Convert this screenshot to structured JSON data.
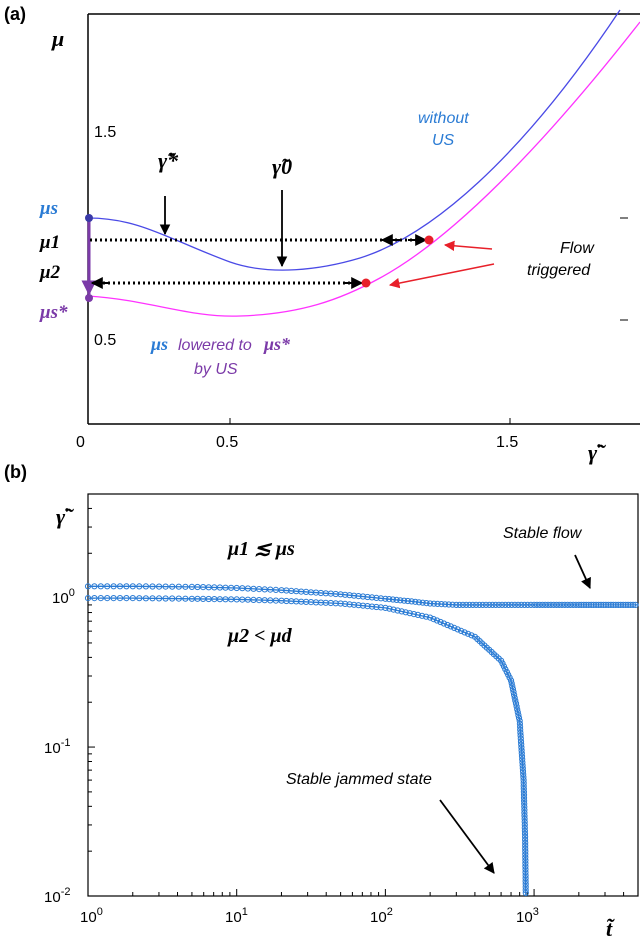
{
  "chart_data": [
    {
      "panel": "(a)",
      "type": "line",
      "ylabel": "μ",
      "xlabel": "γ̇̃",
      "xlim": [
        0,
        2.0
      ],
      "ylim": [
        0,
        2.0
      ],
      "x_ticks": [
        "0",
        "0.5",
        "1.5"
      ],
      "y_ticks": [
        "0.5",
        "1.5"
      ],
      "series": [
        {
          "name": "without US",
          "color": "#4a4ae6",
          "x": [
            0,
            0.1,
            0.2,
            0.3,
            0.4,
            0.5,
            0.6,
            0.7,
            0.8,
            0.9,
            1.0,
            1.1,
            1.2,
            1.3,
            1.4,
            1.5,
            1.6,
            1.7,
            1.8,
            1.9,
            1.97
          ],
          "y": [
            1.0,
            0.99,
            0.94,
            0.88,
            0.82,
            0.78,
            0.76,
            0.76,
            0.78,
            0.8,
            0.85,
            0.92,
            1.0,
            1.08,
            1.18,
            1.3,
            1.44,
            1.6,
            1.78,
            1.98,
            2.1
          ]
        },
        {
          "name": "μs* (with US)",
          "color": "#ff33ff",
          "x": [
            0,
            0.1,
            0.2,
            0.3,
            0.4,
            0.5,
            0.6,
            0.7,
            0.8,
            0.9,
            1.0,
            1.1,
            1.2,
            1.3,
            1.4,
            1.5,
            1.6,
            1.7,
            1.8,
            1.9,
            2.0
          ],
          "y": [
            0.72,
            0.7,
            0.66,
            0.62,
            0.6,
            0.58,
            0.58,
            0.6,
            0.64,
            0.7,
            0.75,
            0.82,
            0.9,
            0.99,
            1.08,
            1.18,
            1.3,
            1.45,
            1.6,
            1.78,
            2.0
          ]
        }
      ],
      "levels": {
        "mu_s": 1.0,
        "mu_1": 0.79,
        "mu_2": 0.65,
        "mu_s_star": 0.72
      },
      "arrow_from_x": 0,
      "dashed_arrow_to_x": {
        "mu_1": 1.22,
        "mu_2": 1.0
      },
      "red_points": [
        {
          "x": 1.22,
          "y": 0.79
        },
        {
          "x": 1.0,
          "y": 0.65
        }
      ],
      "labels": {
        "mu_s": "μs",
        "mu_1": "μ1",
        "mu_2": "μ2",
        "mu_s_star": "μs*",
        "gamma_star": "γ̃*",
        "gamma_0": "γ̃0",
        "without_us_1": "without",
        "without_us_2": "US",
        "flow_1": "Flow",
        "flow_2": "triggered",
        "lowered_1": "lowered to",
        "lowered_2": "by US",
        "panel": "(a)"
      },
      "colors": {
        "blue_label": "#2a7bd4",
        "purple": "#7b3aa8",
        "red": "#e8202a"
      }
    },
    {
      "panel": "(b)",
      "type": "line",
      "ylabel": "γ̇̃",
      "xlabel": "t̃",
      "xscale": "log",
      "yscale": "log",
      "xlim": [
        1,
        5000
      ],
      "ylim": [
        0.01,
        5
      ],
      "x_ticks": [
        "10^0",
        "10^1",
        "10^2",
        "10^3"
      ],
      "y_ticks": [
        "10^-2",
        "10^-1",
        "10^0"
      ],
      "series": [
        {
          "name": "Stable flow",
          "color": "#2a7bd4",
          "x": [
            1,
            2,
            5,
            10,
            20,
            50,
            100,
            150,
            200,
            300,
            500,
            1000,
            2000,
            5000
          ],
          "y": [
            1.2,
            1.2,
            1.19,
            1.17,
            1.13,
            1.06,
            0.99,
            0.95,
            0.92,
            0.9,
            0.9,
            0.9,
            0.9,
            0.9
          ]
        },
        {
          "name": "Stable jammed state",
          "color": "#2a7bd4",
          "x": [
            1,
            2,
            5,
            10,
            20,
            50,
            100,
            200,
            400,
            600,
            700,
            800,
            850,
            870,
            880
          ],
          "y": [
            1.0,
            1.0,
            0.99,
            0.98,
            0.96,
            0.92,
            0.86,
            0.74,
            0.55,
            0.38,
            0.28,
            0.15,
            0.06,
            0.025,
            0.01
          ]
        }
      ],
      "labels": {
        "condition_1": "μ1 ≲ μs",
        "condition_2": "μ2 < μd",
        "stable_flow": "Stable flow",
        "stable_jammed": "Stable jammed state",
        "panel": "(b)"
      }
    }
  ]
}
